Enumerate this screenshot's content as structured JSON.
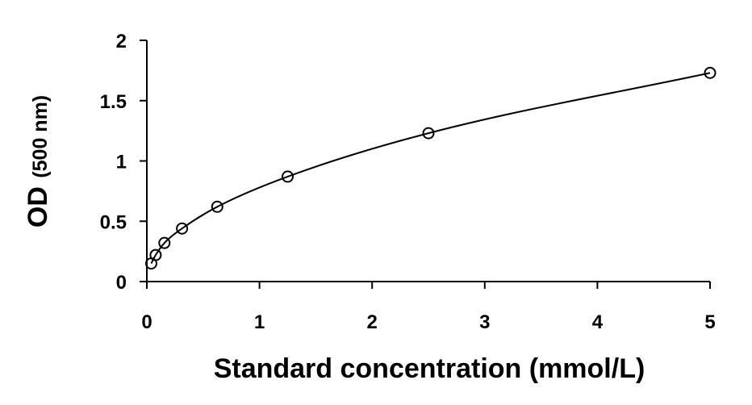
{
  "chart_data": {
    "type": "scatter",
    "xlabel": "Standard concentration (mmol/L)",
    "ylabel_main": "OD",
    "ylabel_unit": "(500 nm)",
    "xlim": [
      0,
      5
    ],
    "ylim": [
      0,
      2
    ],
    "x_ticks": [
      0,
      1,
      2,
      3,
      4,
      5
    ],
    "x_tick_labels": [
      "0",
      "1",
      "2",
      "3",
      "4",
      "5"
    ],
    "y_ticks": [
      0,
      0.5,
      1,
      1.5,
      2
    ],
    "y_tick_labels": [
      "0",
      "0.5",
      "1",
      "1.5",
      "2"
    ],
    "grid": false,
    "series": [
      {
        "marker": "open-circle",
        "fit_line": "smooth",
        "x": [
          0.039,
          0.078,
          0.156,
          0.3125,
          0.625,
          1.25,
          2.5,
          5.0
        ],
        "y": [
          0.15,
          0.22,
          0.32,
          0.44,
          0.62,
          0.87,
          1.23,
          1.73
        ]
      }
    ],
    "colors": {
      "marker_stroke": "#000000",
      "line": "#000000",
      "axis": "#000000"
    }
  }
}
